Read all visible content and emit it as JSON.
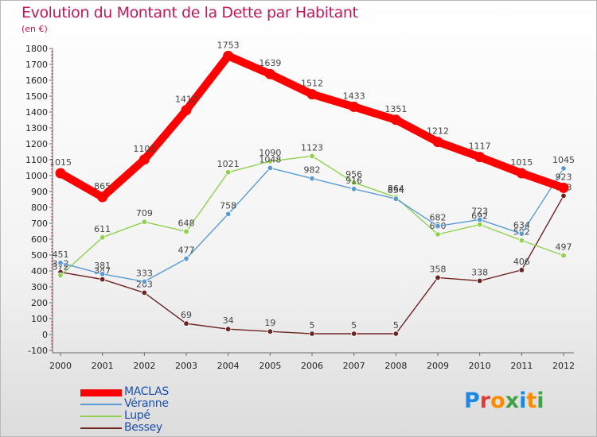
{
  "title": "Evolution du Montant de la Dette par Habitant",
  "unit_label": "(en €)",
  "logo": {
    "letters": [
      {
        "ch": "P",
        "color": "#1e88e5"
      },
      {
        "ch": "r",
        "color": "#e53935"
      },
      {
        "ch": "o",
        "color": "#fb8c00"
      },
      {
        "ch": "x",
        "color": "#43a047"
      },
      {
        "ch": "i",
        "color": "#1e88e5"
      },
      {
        "ch": "t",
        "color": "#fb8c00"
      },
      {
        "ch": "i",
        "color": "#43a047"
      }
    ]
  },
  "chart_data": {
    "type": "line",
    "title": "Evolution du Montant de la Dette par Habitant",
    "subtitle": "(en €)",
    "x": [
      "2000",
      "2001",
      "2002",
      "2003",
      "2004",
      "2005",
      "2006",
      "2007",
      "2008",
      "2009",
      "2010",
      "2011",
      "2012"
    ],
    "ylim": [
      -100,
      1800
    ],
    "yticks": [
      -100,
      0,
      100,
      200,
      300,
      400,
      500,
      600,
      700,
      800,
      900,
      1000,
      1100,
      1200,
      1300,
      1400,
      1500,
      1600,
      1700,
      1800
    ],
    "grid": false,
    "legend_position": "bottom-left",
    "series": [
      {
        "name": "MACLAS",
        "color": "#ff0000",
        "values": [
          1015,
          865,
          1101,
          1412,
          1753,
          1639,
          1512,
          1433,
          1351,
          1212,
          1117,
          1015,
          923
        ]
      },
      {
        "name": "Véranne",
        "color": "#5b9bd5",
        "values": [
          451,
          381,
          333,
          477,
          758,
          1048,
          982,
          916,
          854,
          682,
          723,
          634,
          1045
        ]
      },
      {
        "name": "Lupé",
        "color": "#8fd14f",
        "values": [
          372,
          611,
          709,
          648,
          1021,
          1090,
          1123,
          956,
          864,
          630,
          692,
          592,
          497
        ]
      },
      {
        "name": "Bessey",
        "color": "#6e2323",
        "values": [
          392,
          347,
          263,
          69,
          34,
          19,
          5,
          5,
          5,
          358,
          338,
          406,
          873
        ]
      }
    ]
  }
}
